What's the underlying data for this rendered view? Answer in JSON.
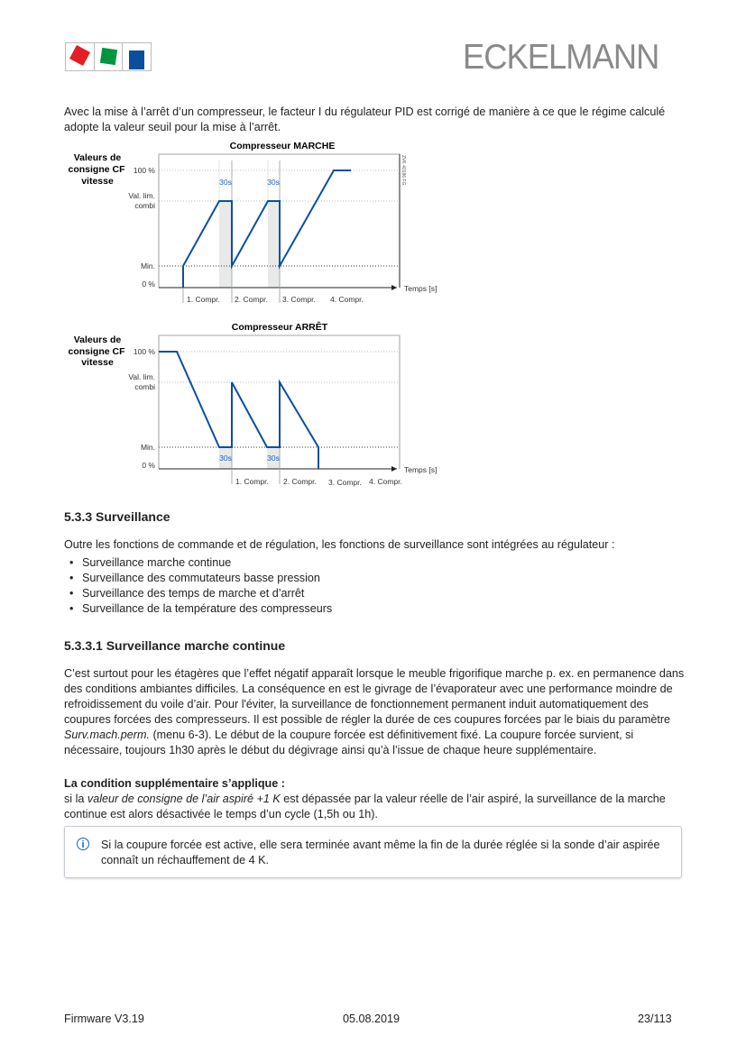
{
  "header": {
    "brand": "ECKELMANN",
    "logo_colors": [
      "#e31e24",
      "#009640",
      "#0a4f9e"
    ]
  },
  "intro": "Avec la mise à l’arrêt d’un compresseur, le facteur I du régulateur PID est corrigé de manière à ce que le régime calculé adopte la valeur seuil pour la mise à l’arrêt.",
  "diagrams": {
    "line_color": "#0a4f9e",
    "y_title": [
      "Valeurs de",
      "consigne CF",
      "vitesse"
    ],
    "y_labels": {
      "max": "100 %",
      "val_lim_1": "Val. lim.",
      "val_lim_2": "combi",
      "min": "Min.",
      "zero": "0 %"
    },
    "x_label": "Temps [s]",
    "delay_label": "30s",
    "compr_labels": [
      "1. Compr.",
      "2. Compr.",
      "3. Compr.",
      "4. Compr."
    ],
    "marche_title": "Compresseur MARCHE",
    "arret_title": "Compresseur ARRÊT",
    "figure_code": "ZVK 40186 FG"
  },
  "section_533": {
    "heading": "5.3.3  Surveillance",
    "text": "Outre les fonctions de commande et de régulation, les fonctions de surveillance sont intégrées au régulateur :",
    "items": [
      "Surveillance marche continue",
      "Surveillance des commutateurs basse pression",
      "Surveillance des temps de marche et d’arrêt",
      "Surveillance de la température des compresseurs"
    ]
  },
  "section_5331": {
    "heading": "5.3.3.1  Surveillance marche continue",
    "p1_a": "C’est surtout pour les étagères que l’effet négatif apparaît lorsque le meuble frigorifique marche p. ex. en permanence dans des conditions ambiantes difficiles. La conséquence en est le givrage de l’évaporateur avec une performance moindre de refroidissement du voile d’air. Pour l'éviter, la surveillance de fonctionnement permanent induit automatiquement des coupures forcées des compresseurs. Il est possible de régler la durée de ces coupures forcées par le biais du paramètre ",
    "p1_param": "Surv.mach.perm.",
    "p1_b": " (menu 6-3). Le début de la coupure forcée est définitivement fixé. La coupure forcée survient, si nécessaire, toujours 1h30 après le début du dégivrage ainsi qu’à l’issue de chaque heure supplémentaire.",
    "cond_title": "La condition supplémentaire s’applique :",
    "cond_a": "si la ",
    "cond_em": "valeur de consigne de l’air aspiré +1 K",
    "cond_b": " est dépassée par la valeur réelle de l’air aspiré, la surveillance de la marche continue est alors désactivée le temps d’un cycle (1,5h ou 1h).",
    "note_icon": "i",
    "note": "Si la coupure forcée est active, elle sera terminée avant même la fin de la durée réglée si la sonde d’air aspirée connaît un réchauffement de 4 K."
  },
  "footer": {
    "left": "Firmware V3.19",
    "center": "05.08.2019",
    "right": "23/113"
  }
}
